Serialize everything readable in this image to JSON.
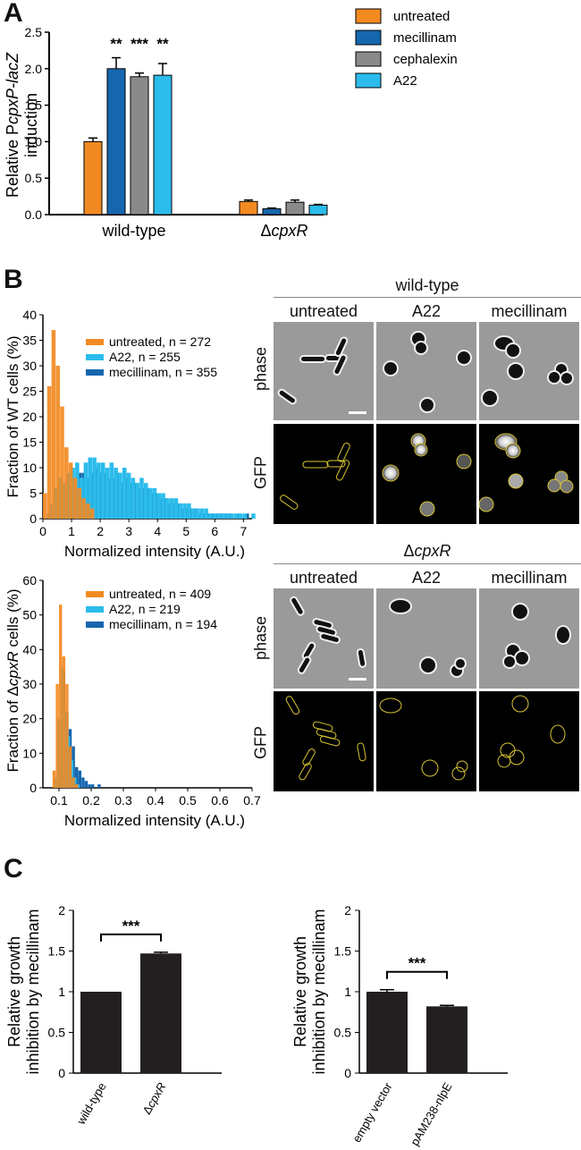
{
  "panels": {
    "a": "A",
    "b": "B",
    "c": "C"
  },
  "chart_data": [
    {
      "id": "A",
      "type": "bar",
      "ylabel_line1_pre": "Relative P",
      "ylabel_line1_it": "cpxP-lacZ",
      "ylabel_line2": "induction",
      "ylim": [
        0,
        2.5
      ],
      "yticks": [
        "0.0",
        "0.5",
        "1.0",
        "1.5",
        "2.0",
        "2.5"
      ],
      "groups": [
        {
          "label": "wild-type",
          "label_prefix": "",
          "label_italic": ""
        },
        {
          "label": "",
          "label_prefix": "Δ",
          "label_italic": "cpxR"
        }
      ],
      "series": [
        {
          "name": "untreated",
          "color": "#F28A22",
          "values": [
            1.0,
            0.18
          ],
          "errors": [
            0.05,
            0.02
          ],
          "sig": [
            "",
            ""
          ]
        },
        {
          "name": "mecillinam",
          "color": "#1566AE",
          "values": [
            2.0,
            0.08
          ],
          "errors": [
            0.15,
            0.01
          ],
          "sig": [
            "**",
            ""
          ]
        },
        {
          "name": "cephalexin",
          "color": "#8A8A8A",
          "values": [
            1.89,
            0.17
          ],
          "errors": [
            0.05,
            0.03
          ],
          "sig": [
            "***",
            ""
          ]
        },
        {
          "name": "A22",
          "color": "#2BBCEB",
          "values": [
            1.91,
            0.13
          ],
          "errors": [
            0.16,
            0.01
          ],
          "sig": [
            "**",
            ""
          ]
        }
      ],
      "legend_position": "top-right"
    },
    {
      "id": "B-top",
      "type": "bar",
      "ylabel": "Fraction of WT cells (%)",
      "xlabel": "Normalized intensity (A.U.)",
      "ylim": [
        0,
        40
      ],
      "xlim": [
        0,
        7.3
      ],
      "yticks": [
        "0",
        "5",
        "10",
        "15",
        "20",
        "25",
        "30",
        "35",
        "40"
      ],
      "xticks": [
        "0",
        "1",
        "2",
        "3",
        "4",
        "5",
        "6",
        "7"
      ],
      "series": [
        {
          "name": "untreated, n = 272",
          "color": "#F28A22",
          "bin_start": 0,
          "bin_width": 0.15,
          "values": [
            5,
            26,
            37,
            30,
            22,
            14,
            11,
            8,
            6,
            4,
            3,
            2
          ]
        },
        {
          "name": "A22, n = 255",
          "color": "#2BBCEB",
          "bin_start": 0.075,
          "bin_width": 0.15,
          "values": [
            0,
            3,
            6,
            8,
            7,
            9,
            10,
            11,
            8,
            11,
            12,
            12,
            11,
            11,
            10,
            11,
            10,
            9,
            10,
            9,
            8,
            7,
            8,
            7,
            6,
            6,
            5,
            5,
            4,
            4,
            4,
            3,
            3,
            3,
            2,
            2,
            2,
            2,
            1,
            1,
            1,
            1,
            1,
            1,
            1,
            1,
            1,
            0,
            1,
            0
          ]
        },
        {
          "name": "mecillinam, n = 355",
          "color": "#1566AE",
          "bin_start": 0.15,
          "bin_width": 0.15,
          "values": [
            1,
            2,
            4,
            5,
            6,
            6,
            8,
            9,
            9,
            8,
            9,
            10,
            9,
            9,
            8,
            8,
            9,
            7,
            8,
            7,
            7,
            6,
            6,
            6,
            5,
            5,
            4,
            4,
            3,
            3,
            3,
            2,
            2,
            2,
            2,
            1,
            1,
            1,
            1,
            1,
            1,
            1,
            1,
            0,
            1,
            0,
            1
          ]
        }
      ],
      "legend_position": "top-right"
    },
    {
      "id": "B-bottom",
      "type": "bar",
      "ylabel_pre": "Fraction of Δ",
      "ylabel_it": "cpxR",
      "ylabel_post": " cells (%)",
      "xlabel": "Normalized intensity (A.U.)",
      "ylim": [
        0,
        60
      ],
      "xlim": [
        0.05,
        0.7
      ],
      "yticks": [
        "0",
        "10",
        "20",
        "30",
        "40",
        "50",
        "60"
      ],
      "xticks": [
        "0.1",
        "0.2",
        "0.3",
        "0.4",
        "0.5",
        "0.6",
        "0.7"
      ],
      "series": [
        {
          "name": "untreated, n = 409",
          "color": "#F28A22",
          "bin_start": 0.08,
          "bin_width": 0.01,
          "values": [
            5,
            30,
            53,
            38,
            30,
            12,
            3,
            1
          ]
        },
        {
          "name": "A22, n = 219",
          "color": "#2BBCEB",
          "bin_start": 0.085,
          "bin_width": 0.01,
          "values": [
            3,
            20,
            35,
            22,
            15,
            8,
            3,
            1
          ]
        },
        {
          "name": "mecillinam, n = 194",
          "color": "#1566AE",
          "bin_start": 0.09,
          "bin_width": 0.01,
          "values": [
            2,
            18,
            34,
            22,
            17,
            12,
            6,
            5,
            3,
            2,
            1,
            1,
            0,
            1
          ]
        }
      ],
      "legend_position": "top-right"
    },
    {
      "id": "C-left",
      "type": "bar",
      "ylabel_line1": "Relative growth",
      "ylabel_line2": "inhibition by mecillinam",
      "ylim": [
        0,
        2
      ],
      "yticks": [
        "0",
        "0.5",
        "1",
        "1.5",
        "2"
      ],
      "categories": [
        {
          "prefix": "",
          "italic": "",
          "plain": "wild-type"
        },
        {
          "prefix": "Δ",
          "italic": "cpxR",
          "plain": ""
        }
      ],
      "values": [
        1.0,
        1.47
      ],
      "errors": [
        0,
        0.015
      ],
      "sig": "***",
      "color": "#231F20"
    },
    {
      "id": "C-right",
      "type": "bar",
      "ylabel_line1": "Relative growth",
      "ylabel_line2": "inhibition by mecillinam",
      "ylim": [
        0,
        2
      ],
      "yticks": [
        "0",
        "0.5",
        "1",
        "1.5",
        "2"
      ],
      "categories": [
        {
          "prefix": "",
          "italic": "",
          "plain": "empty vector"
        },
        {
          "prefix": "",
          "italic": "",
          "plain": "pAM238-nlpE"
        }
      ],
      "values": [
        1.0,
        0.82
      ],
      "errors": [
        0.025,
        0.012
      ],
      "sig": "***",
      "color": "#231F20"
    }
  ],
  "micrographs": {
    "wt_title": "wild-type",
    "cpxr_title_prefix": "Δ",
    "cpxr_title_italic": "cpxR",
    "columns": [
      "untreated",
      "A22",
      "mecillinam"
    ],
    "rows": [
      "phase",
      "GFP"
    ]
  }
}
